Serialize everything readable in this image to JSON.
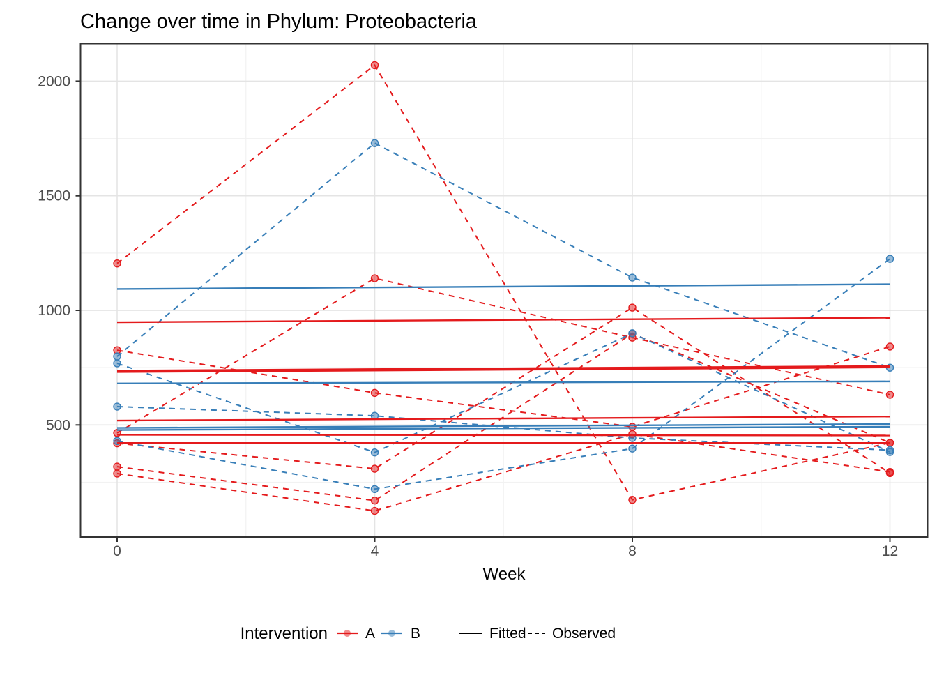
{
  "chart_data": {
    "type": "line",
    "title": "Change over time in Phylum: Proteobacteria",
    "xlabel": "Week",
    "ylabel": "",
    "x": [
      0,
      4,
      8,
      12
    ],
    "x_tick_labels": [
      "0",
      "4",
      "8",
      "12"
    ],
    "x_minor": [
      2,
      6,
      10
    ],
    "y_ticks": [
      500,
      1000,
      1500,
      2000
    ],
    "y_tick_labels": [
      "500",
      "1000",
      "1500",
      "2000"
    ],
    "y_minor": [
      250,
      750,
      1250,
      1750
    ],
    "xlim": [
      -0.57,
      12.59
    ],
    "ylim": [
      11,
      2165
    ],
    "grid": "on",
    "legend_position": "bottom",
    "groups": {
      "A": "#E41A1C",
      "B": "#377EB8"
    },
    "line_types": {
      "Fitted": "solid",
      "Observed": "dashed"
    },
    "series": [
      {
        "id": "A1",
        "intervention": "A",
        "weeks": [
          0,
          4,
          8,
          12
        ],
        "observed": [
          1205,
          2070,
          173,
          422
        ],
        "fitted_start": 948,
        "fitted_end": 968
      },
      {
        "id": "A2",
        "intervention": "A",
        "weeks": [
          0,
          4,
          8,
          12
        ],
        "observed": [
          826,
          640,
          492,
          842
        ],
        "fitted_start": 737,
        "fitted_end": 757
      },
      {
        "id": "A3",
        "intervention": "A",
        "weeks": [
          0,
          4,
          8,
          12
        ],
        "observed": [
          465,
          1140,
          881,
          632
        ],
        "fitted_start": 731,
        "fitted_end": 751
      },
      {
        "id": "A4",
        "intervention": "A",
        "weeks": [
          0,
          4,
          8,
          12
        ],
        "observed": [
          420,
          309,
          1012,
          290
        ],
        "fitted_start": 519,
        "fitted_end": 537
      },
      {
        "id": "A5",
        "intervention": "A",
        "weeks": [
          0,
          4,
          8,
          12
        ],
        "observed": [
          318,
          170,
          899,
          422
        ],
        "fitted_start": 457,
        "fitted_end": 454
      },
      {
        "id": "A6",
        "intervention": "A",
        "weeks": [
          0,
          4,
          8,
          12
        ],
        "observed": [
          288,
          125,
          460,
          295
        ],
        "fitted_start": 421,
        "fitted_end": 421
      },
      {
        "id": "B1",
        "intervention": "B",
        "weeks": [
          0,
          4,
          8,
          12
        ],
        "observed": [
          799,
          1730,
          1143,
          750
        ],
        "fitted_start": 1093,
        "fitted_end": 1114
      },
      {
        "id": "B2",
        "intervention": "B",
        "weeks": [
          0,
          4,
          8,
          12
        ],
        "observed": [
          769,
          380,
          900,
          382
        ],
        "fitted_start": 681,
        "fitted_end": 690
      },
      {
        "id": "B3",
        "intervention": "B",
        "weeks": [
          0,
          4,
          8,
          12
        ],
        "observed": [
          580,
          540,
          443,
          390
        ],
        "fitted_start": 487,
        "fitted_end": 504
      },
      {
        "id": "B4",
        "intervention": "B",
        "weeks": [
          0,
          4,
          8,
          12
        ],
        "observed": [
          430,
          220,
          397,
          1225
        ],
        "fitted_start": 478,
        "fitted_end": 492
      }
    ]
  },
  "legend": {
    "title": "Intervention",
    "color_items": [
      {
        "label": "A",
        "color": "#E41A1C"
      },
      {
        "label": "B",
        "color": "#377EB8"
      }
    ],
    "linetype_items": [
      {
        "label": "Fitted",
        "style": "solid"
      },
      {
        "label": "Observed",
        "style": "dashed"
      }
    ]
  },
  "colors": {
    "red": "#E41A1C",
    "blue": "#377EB8",
    "grid_major": "#E4E4E4",
    "grid_minor": "#F2F2F2",
    "panel_border": "#333333",
    "tick_mark": "#333333",
    "tick_label": "#4D4D4D",
    "text": "#000000",
    "background": "#FFFFFF"
  }
}
